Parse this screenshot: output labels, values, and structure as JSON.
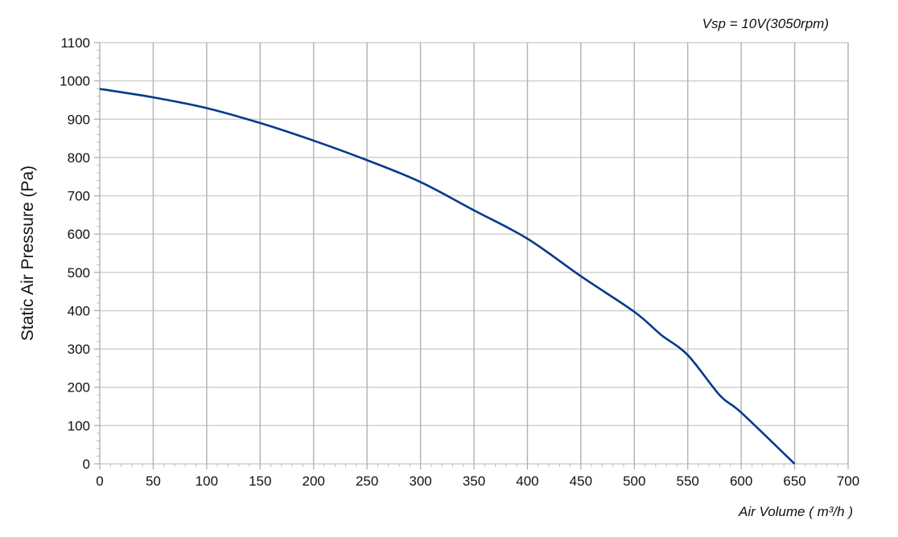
{
  "chart_data": {
    "type": "line",
    "title": "Vsp = 10V(3050rpm)",
    "xlabel": "Air Volume ( m³/h )",
    "ylabel": "Static Air Pressure  (Pa)",
    "xlim": [
      0,
      700
    ],
    "ylim": [
      0,
      1100
    ],
    "xticks": [
      0,
      50,
      100,
      150,
      200,
      250,
      300,
      350,
      400,
      450,
      500,
      550,
      600,
      650,
      700
    ],
    "yticks": [
      0,
      100,
      200,
      300,
      400,
      500,
      600,
      700,
      800,
      900,
      1000,
      1100
    ],
    "grid": true,
    "series": [
      {
        "color": "#003a8c",
        "x": [
          0,
          50,
          100,
          150,
          200,
          250,
          300,
          350,
          400,
          450,
          500,
          525,
          550,
          580,
          600,
          650
        ],
        "y": [
          979,
          957,
          929,
          890,
          844,
          793,
          736,
          662,
          588,
          490,
          397,
          337,
          284,
          179,
          134,
          0
        ]
      }
    ]
  }
}
